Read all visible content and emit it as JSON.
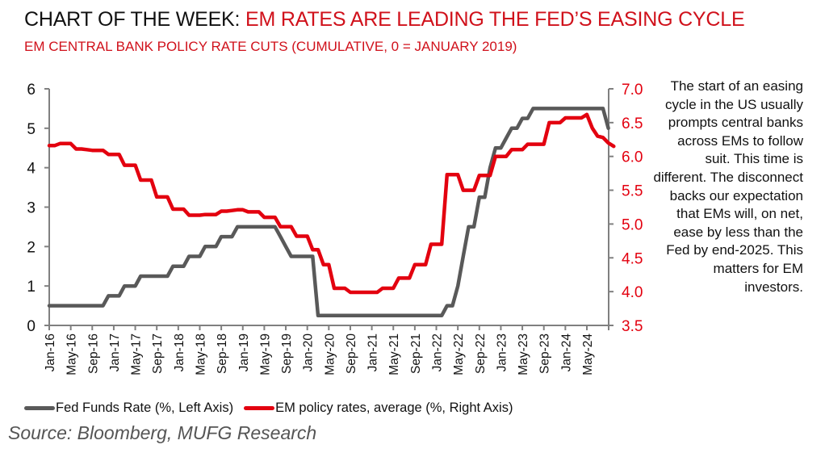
{
  "header": {
    "title_prefix": "CHART OF THE WEEK: ",
    "title_highlight": "EM RATES ARE LEADING THE FED’S EASING CYCLE",
    "subtitle": "EM CENTRAL BANK POLICY RATE CUTS (CUMULATIVE, 0 = JANUARY 2019)"
  },
  "note": "The start of an easing cycle in the US usually prompts central banks across EMs to follow suit. This time is different. The disconnect backs our expectation that EMs will, on net, ease by less than the Fed by end-2025. This matters for EM investors.",
  "source": "Source: Bloomberg, MUFG Research",
  "colors": {
    "fed": "#595959",
    "em": "#e3000f",
    "title_red": "#d0111b",
    "axis": "#808080"
  },
  "chart_data": {
    "type": "line",
    "title": "EM CENTRAL BANK POLICY RATE CUTS (CUMULATIVE, 0 = JANUARY 2019)",
    "xlabel": "",
    "ylabel_left": "Fed Funds Rate (%)",
    "ylabel_right": "EM policy rates, average (%)",
    "ylim_left": [
      0,
      6
    ],
    "ylim_right": [
      3.5,
      7.0
    ],
    "yticks_left": [
      "0",
      "1",
      "2",
      "3",
      "4",
      "5",
      "6"
    ],
    "yticks_right": [
      "3.5",
      "4.0",
      "4.5",
      "5.0",
      "5.5",
      "6.0",
      "6.5",
      "7.0"
    ],
    "grid": false,
    "legend_position": "bottom",
    "x_start": "Jan-16",
    "x_tick_labels": [
      "Jan-16",
      "May-16",
      "Sep-16",
      "Jan-17",
      "May-17",
      "Sep-17",
      "Jan-18",
      "May-18",
      "Sep-18",
      "Jan-19",
      "May-19",
      "Sep-19",
      "Jan-20",
      "May-20",
      "Sep-20",
      "Jan-21",
      "May-21",
      "Sep-21",
      "Jan-22",
      "May-22",
      "Sep-22",
      "Jan-23",
      "May-23",
      "Sep-23",
      "Jan-24",
      "May-24"
    ],
    "series": [
      {
        "name": "Fed Funds Rate (%, Left Axis)",
        "axis": "left",
        "frequency": "monthly",
        "values": [
          0.5,
          0.5,
          0.5,
          0.5,
          0.5,
          0.5,
          0.5,
          0.5,
          0.5,
          0.5,
          0.5,
          0.75,
          0.75,
          0.75,
          1.0,
          1.0,
          1.0,
          1.25,
          1.25,
          1.25,
          1.25,
          1.25,
          1.25,
          1.5,
          1.5,
          1.5,
          1.75,
          1.75,
          1.75,
          2.0,
          2.0,
          2.0,
          2.25,
          2.25,
          2.25,
          2.5,
          2.5,
          2.5,
          2.5,
          2.5,
          2.5,
          2.5,
          2.5,
          2.25,
          2.0,
          1.75,
          1.75,
          1.75,
          1.75,
          1.75,
          0.25,
          0.25,
          0.25,
          0.25,
          0.25,
          0.25,
          0.25,
          0.25,
          0.25,
          0.25,
          0.25,
          0.25,
          0.25,
          0.25,
          0.25,
          0.25,
          0.25,
          0.25,
          0.25,
          0.25,
          0.25,
          0.25,
          0.25,
          0.25,
          0.5,
          0.5,
          1.0,
          1.75,
          2.5,
          2.5,
          3.25,
          3.25,
          4.0,
          4.5,
          4.5,
          4.75,
          5.0,
          5.0,
          5.25,
          5.25,
          5.5,
          5.5,
          5.5,
          5.5,
          5.5,
          5.5,
          5.5,
          5.5,
          5.5,
          5.5,
          5.5,
          5.5,
          5.5,
          5.5,
          5.0
        ]
      },
      {
        "name": "EM policy rates, average (%, Right Axis)",
        "axis": "right",
        "frequency": "monthly",
        "values": [
          6.16,
          6.16,
          6.19,
          6.19,
          6.19,
          6.11,
          6.11,
          6.1,
          6.09,
          6.09,
          6.09,
          6.03,
          6.03,
          6.03,
          5.87,
          5.87,
          5.87,
          5.65,
          5.65,
          5.65,
          5.4,
          5.4,
          5.4,
          5.22,
          5.22,
          5.22,
          5.13,
          5.13,
          5.13,
          5.14,
          5.14,
          5.14,
          5.19,
          5.19,
          5.2,
          5.21,
          5.21,
          5.18,
          5.18,
          5.18,
          5.1,
          5.1,
          5.1,
          4.96,
          4.96,
          4.96,
          4.82,
          4.82,
          4.82,
          4.62,
          4.62,
          4.4,
          4.4,
          4.05,
          4.05,
          4.05,
          3.99,
          3.99,
          3.99,
          3.99,
          3.99,
          3.99,
          4.05,
          4.05,
          4.05,
          4.2,
          4.2,
          4.2,
          4.4,
          4.4,
          4.4,
          4.7,
          4.7,
          4.7,
          5.73,
          5.73,
          5.73,
          5.5,
          5.5,
          5.5,
          5.72,
          5.72,
          5.72,
          6.0,
          6.0,
          6.0,
          6.1,
          6.1,
          6.1,
          6.18,
          6.18,
          6.18,
          6.18,
          6.5,
          6.5,
          6.5,
          6.57,
          6.57,
          6.57,
          6.57,
          6.62,
          6.42,
          6.3,
          6.28,
          6.2,
          6.15
        ]
      }
    ]
  }
}
